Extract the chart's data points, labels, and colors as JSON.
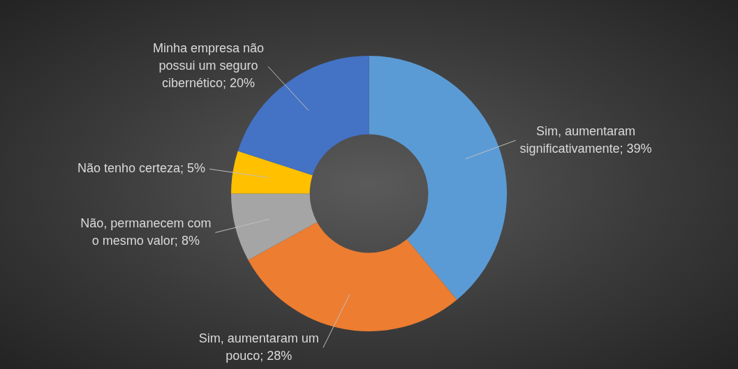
{
  "chart_data": {
    "type": "donut",
    "categories": [
      "Sim, aumentaram significativamente",
      "Sim, aumentaram um pouco",
      "Não, permanecem com o mesmo valor",
      "Não tenho certeza",
      "Minha empresa não possui um seguro cibernético"
    ],
    "values": [
      39,
      28,
      8,
      5,
      20
    ],
    "colors": [
      "#5b9bd5",
      "#ed7d31",
      "#a5a5a5",
      "#ffc000",
      "#4472c4"
    ],
    "value_labels": [
      "39%",
      "28%",
      "8%",
      "5%",
      "20%"
    ]
  }
}
